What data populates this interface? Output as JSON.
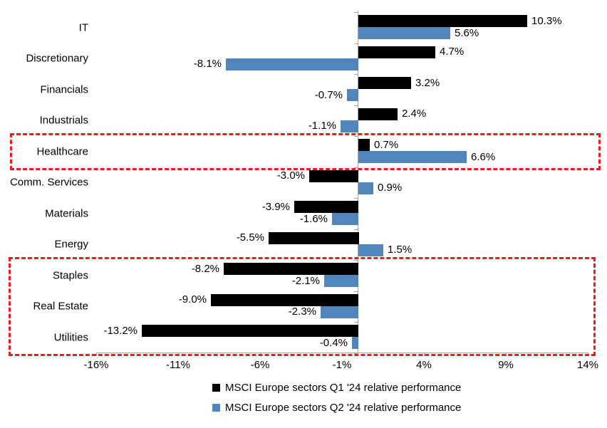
{
  "chart_data": {
    "type": "bar",
    "orientation": "horizontal",
    "categories": [
      "IT",
      "Discretionary",
      "Financials",
      "Industrials",
      "Healthcare",
      "Comm. Services",
      "Materials",
      "Energy",
      "Staples",
      "Real Estate",
      "Utilities"
    ],
    "series": [
      {
        "name": "MSCI Europe sectors Q1 '24 relative performance",
        "color": "#000000",
        "values": [
          10.3,
          4.7,
          3.2,
          2.4,
          0.7,
          -3.0,
          -3.9,
          -5.5,
          -8.2,
          -9.0,
          -13.2
        ],
        "labels": [
          "10.3%",
          "4.7%",
          "3.2%",
          "2.4%",
          "0.7%",
          "-3.0%",
          "-3.9%",
          "-5.5%",
          "-8.2%",
          "-9.0%",
          "-13.2%"
        ]
      },
      {
        "name": "MSCI Europe sectors Q2 '24 relative performance",
        "color": "#5086BC",
        "values": [
          5.6,
          -8.1,
          -0.7,
          -1.1,
          6.6,
          0.9,
          -1.6,
          1.5,
          -2.1,
          -2.3,
          -0.4
        ],
        "labels": [
          "5.6%",
          "-8.1%",
          "-0.7%",
          "-1.1%",
          "6.6%",
          "0.9%",
          "-1.6%",
          "1.5%",
          "-2.1%",
          "-2.3%",
          "-0.4%"
        ]
      }
    ],
    "x_axis": {
      "min": -16,
      "max": 14,
      "ticks": [
        {
          "value": -16,
          "label": "-16%"
        },
        {
          "value": -11,
          "label": "-11%"
        },
        {
          "value": -6,
          "label": "-6%"
        },
        {
          "value": -1,
          "label": "-1%"
        },
        {
          "value": 4,
          "label": "4%"
        },
        {
          "value": 9,
          "label": "9%"
        },
        {
          "value": 14,
          "label": "14%"
        }
      ]
    },
    "highlights": [
      {
        "rows": [
          4
        ],
        "covers": "Healthcare"
      },
      {
        "rows": [
          8,
          9,
          10
        ],
        "covers": "Staples, Real Estate, Utilities"
      }
    ],
    "highlight_color": "#EE1C1C",
    "axis_color": "#A6A6A6",
    "legend_position": "bottom"
  }
}
